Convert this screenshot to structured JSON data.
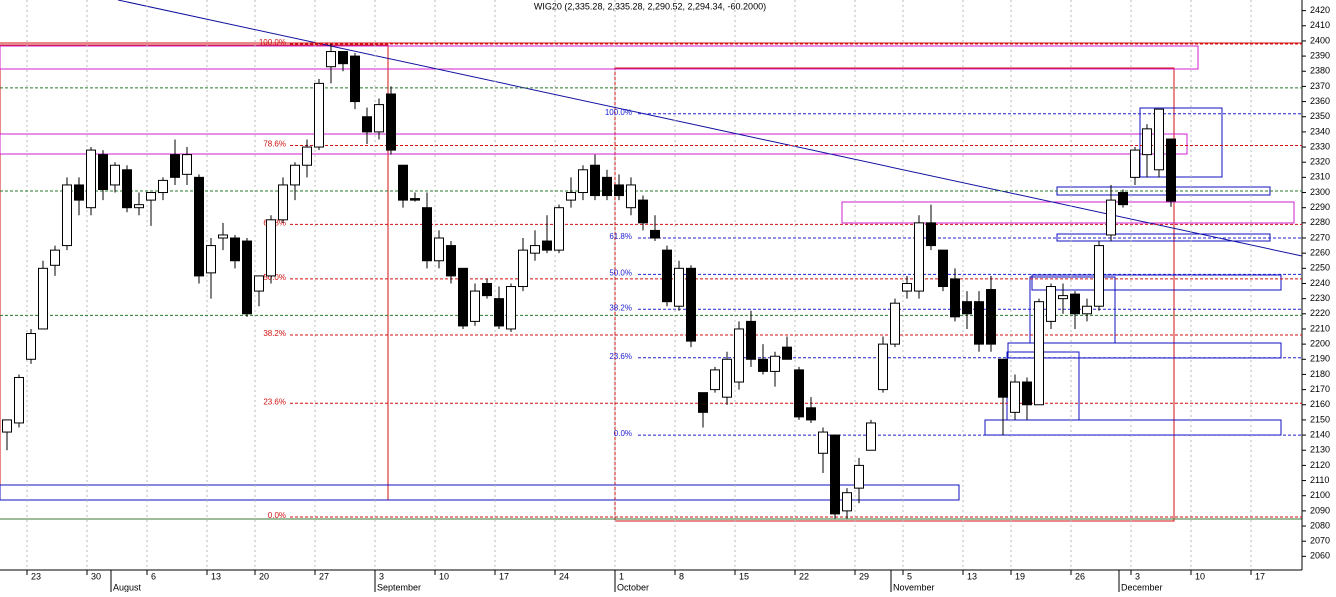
{
  "chart_data": {
    "type": "candlestick",
    "title": "WIG20 (2,335.28, 2,335.28, 2,290.52, 2,294.34, -60.2000)",
    "categories": [
      null,
      null,
      "23",
      null,
      null,
      null,
      null,
      "30",
      null,
      null,
      null,
      null,
      "6",
      null,
      null,
      null,
      null,
      "13",
      null,
      null,
      null,
      "20",
      null,
      null,
      null,
      null,
      "27",
      null,
      null,
      null,
      null,
      "3",
      null,
      null,
      null,
      null,
      "10",
      null,
      null,
      null,
      null,
      "17",
      null,
      null,
      null,
      null,
      "24",
      null,
      null,
      null,
      null,
      "1",
      null,
      null,
      null,
      null,
      "8",
      null,
      null,
      null,
      null,
      "15",
      null,
      null,
      null,
      null,
      "22",
      null,
      null,
      null,
      null,
      "29",
      null,
      null,
      null,
      "5",
      null,
      null,
      null,
      null,
      "13",
      null,
      null,
      null,
      "19",
      null,
      null,
      null,
      null,
      "26",
      null,
      null,
      null,
      null,
      "3",
      null,
      null,
      null,
      null,
      "10",
      null,
      null,
      null,
      null,
      "17",
      null,
      null
    ],
    "months": [
      "August",
      "September",
      "October",
      "November",
      "December"
    ],
    "open": [
      2142,
      2148,
      2190,
      2210,
      2252,
      2265,
      2305,
      2290,
      2325,
      2305,
      2315,
      2290,
      2295,
      2300,
      2325,
      2312,
      2310,
      2247,
      2270,
      2270,
      2268,
      2235,
      2245,
      2282,
      2305,
      2318,
      2330,
      2383,
      2393,
      2390,
      2350,
      2340,
      2365,
      2318,
      2296,
      2290,
      2255,
      2265,
      2250,
      2215,
      2240,
      2230,
      2210,
      2238,
      2260,
      2268,
      2262,
      2295,
      2300,
      2318,
      2310,
      2305,
      2290,
      2295,
      2275,
      2262,
      2225,
      2250,
      2168,
      2170,
      2165,
      2175,
      2215,
      2190,
      2182,
      2198,
      2183,
      2158,
      2128,
      2140,
      2090,
      2105,
      2130,
      2170,
      2200,
      2235,
      2235,
      2280,
      2262,
      2243,
      2228,
      2228,
      2236,
      2190,
      2155,
      2175,
      2160,
      2215,
      2230,
      2233,
      2220,
      2225,
      2272,
      2300,
      2310,
      2325,
      2315,
      2335.28,
      null,
      null,
      null,
      null,
      null,
      null,
      null,
      null,
      null
    ],
    "high": [
      2150,
      2180,
      2210,
      2255,
      2265,
      2310,
      2310,
      2330,
      2328,
      2320,
      2318,
      2300,
      2300,
      2310,
      2335,
      2330,
      2312,
      2270,
      2280,
      2272,
      2270,
      2245,
      2285,
      2310,
      2320,
      2335,
      2375,
      2398,
      2393,
      2392,
      2356,
      2362,
      2370,
      2318,
      2300,
      2300,
      2275,
      2268,
      2250,
      2240,
      2243,
      2238,
      2240,
      2270,
      2275,
      2285,
      2292,
      2310,
      2318,
      2325,
      2315,
      2312,
      2310,
      2298,
      2285,
      2265,
      2255,
      2252,
      2168,
      2185,
      2195,
      2215,
      2222,
      2200,
      2195,
      2205,
      2185,
      2165,
      2145,
      2140,
      2105,
      2125,
      2150,
      2205,
      2230,
      2245,
      2285,
      2292,
      2262,
      2250,
      2235,
      2235,
      2245,
      2190,
      2180,
      2178,
      2230,
      2240,
      2240,
      2235,
      2230,
      2268,
      2305,
      2302,
      2330,
      2345,
      2355,
      2335.28,
      null,
      null,
      null,
      null,
      null,
      null,
      null,
      null,
      null
    ],
    "low": [
      2130,
      2145,
      2187,
      2210,
      2245,
      2262,
      2285,
      2285,
      2295,
      2300,
      2287,
      2285,
      2278,
      2295,
      2305,
      2305,
      2240,
      2230,
      2262,
      2250,
      2218,
      2225,
      2240,
      2280,
      2295,
      2310,
      2328,
      2372,
      2380,
      2355,
      2332,
      2335,
      2325,
      2290,
      2294,
      2250,
      2250,
      2240,
      2210,
      2212,
      2230,
      2210,
      2208,
      2235,
      2255,
      2260,
      2260,
      2290,
      2295,
      2295,
      2295,
      2295,
      2285,
      2275,
      2268,
      2225,
      2222,
      2198,
      2145,
      2168,
      2160,
      2170,
      2185,
      2180,
      2172,
      2190,
      2150,
      2148,
      2115,
      2085,
      2085,
      2095,
      2130,
      2168,
      2198,
      2230,
      2230,
      2262,
      2235,
      2215,
      2210,
      2195,
      2195,
      2140,
      2150,
      2150,
      2160,
      2210,
      2220,
      2210,
      2215,
      2222,
      2268,
      2290,
      2305,
      2310,
      2310,
      2290.52,
      null,
      null,
      null,
      null,
      null,
      null,
      null,
      null,
      null
    ],
    "close": [
      2150,
      2178,
      2207,
      2250,
      2262,
      2305,
      2295,
      2328,
      2302,
      2318,
      2290,
      2292,
      2300,
      2308,
      2310,
      2325,
      2245,
      2265,
      2272,
      2255,
      2220,
      2245,
      2282,
      2305,
      2318,
      2330,
      2372,
      2393,
      2385,
      2360,
      2340,
      2358,
      2328,
      2295,
      2295,
      2255,
      2270,
      2245,
      2212,
      2235,
      2232,
      2212,
      2238,
      2262,
      2265,
      2262,
      2290,
      2300,
      2315,
      2298,
      2298,
      2298,
      2305,
      2280,
      2270,
      2228,
      2250,
      2202,
      2155,
      2183,
      2190,
      2210,
      2190,
      2182,
      2192,
      2190,
      2152,
      2150,
      2142,
      2088,
      2102,
      2120,
      2148,
      2200,
      2227,
      2240,
      2280,
      2265,
      2238,
      2218,
      2220,
      2200,
      2200,
      2165,
      2175,
      2160,
      2228,
      2238,
      2232,
      2220,
      2225,
      2265,
      2295,
      2292,
      2328,
      2342,
      2355,
      2294.34,
      null,
      null,
      null,
      null,
      null,
      null,
      null,
      null,
      null
    ],
    "ylim": [
      2051,
      2427
    ],
    "yticks": [
      2060,
      2070,
      2080,
      2090,
      2100,
      2110,
      2120,
      2130,
      2140,
      2150,
      2160,
      2170,
      2180,
      2190,
      2200,
      2210,
      2220,
      2230,
      2240,
      2250,
      2260,
      2270,
      2280,
      2290,
      2300,
      2310,
      2320,
      2330,
      2340,
      2350,
      2360,
      2370,
      2380,
      2390,
      2400,
      2410,
      2420
    ],
    "fib_red": [
      {
        "label": "100.0%",
        "value": 2398
      },
      {
        "label": "78.6%",
        "value": 2331
      },
      {
        "label": "61.8%",
        "value": 2279
      },
      {
        "label": "50.0%",
        "value": 2243
      },
      {
        "label": "38.2%",
        "value": 2206
      },
      {
        "label": "23.6%",
        "value": 2161
      },
      {
        "label": "0.0%",
        "value": 2086
      }
    ],
    "fib_blue": [
      {
        "label": "100.0%",
        "value": 2352
      },
      {
        "label": "61.8%",
        "value": 2270
      },
      {
        "label": "50.0%",
        "value": 2246
      },
      {
        "label": "38.2%",
        "value": 2223
      },
      {
        "label": "23.6%",
        "value": 2191
      },
      {
        "label": "0.0%",
        "value": 2140
      }
    ],
    "green_levels": [
      2369,
      2301,
      2219
    ],
    "grid": true
  }
}
